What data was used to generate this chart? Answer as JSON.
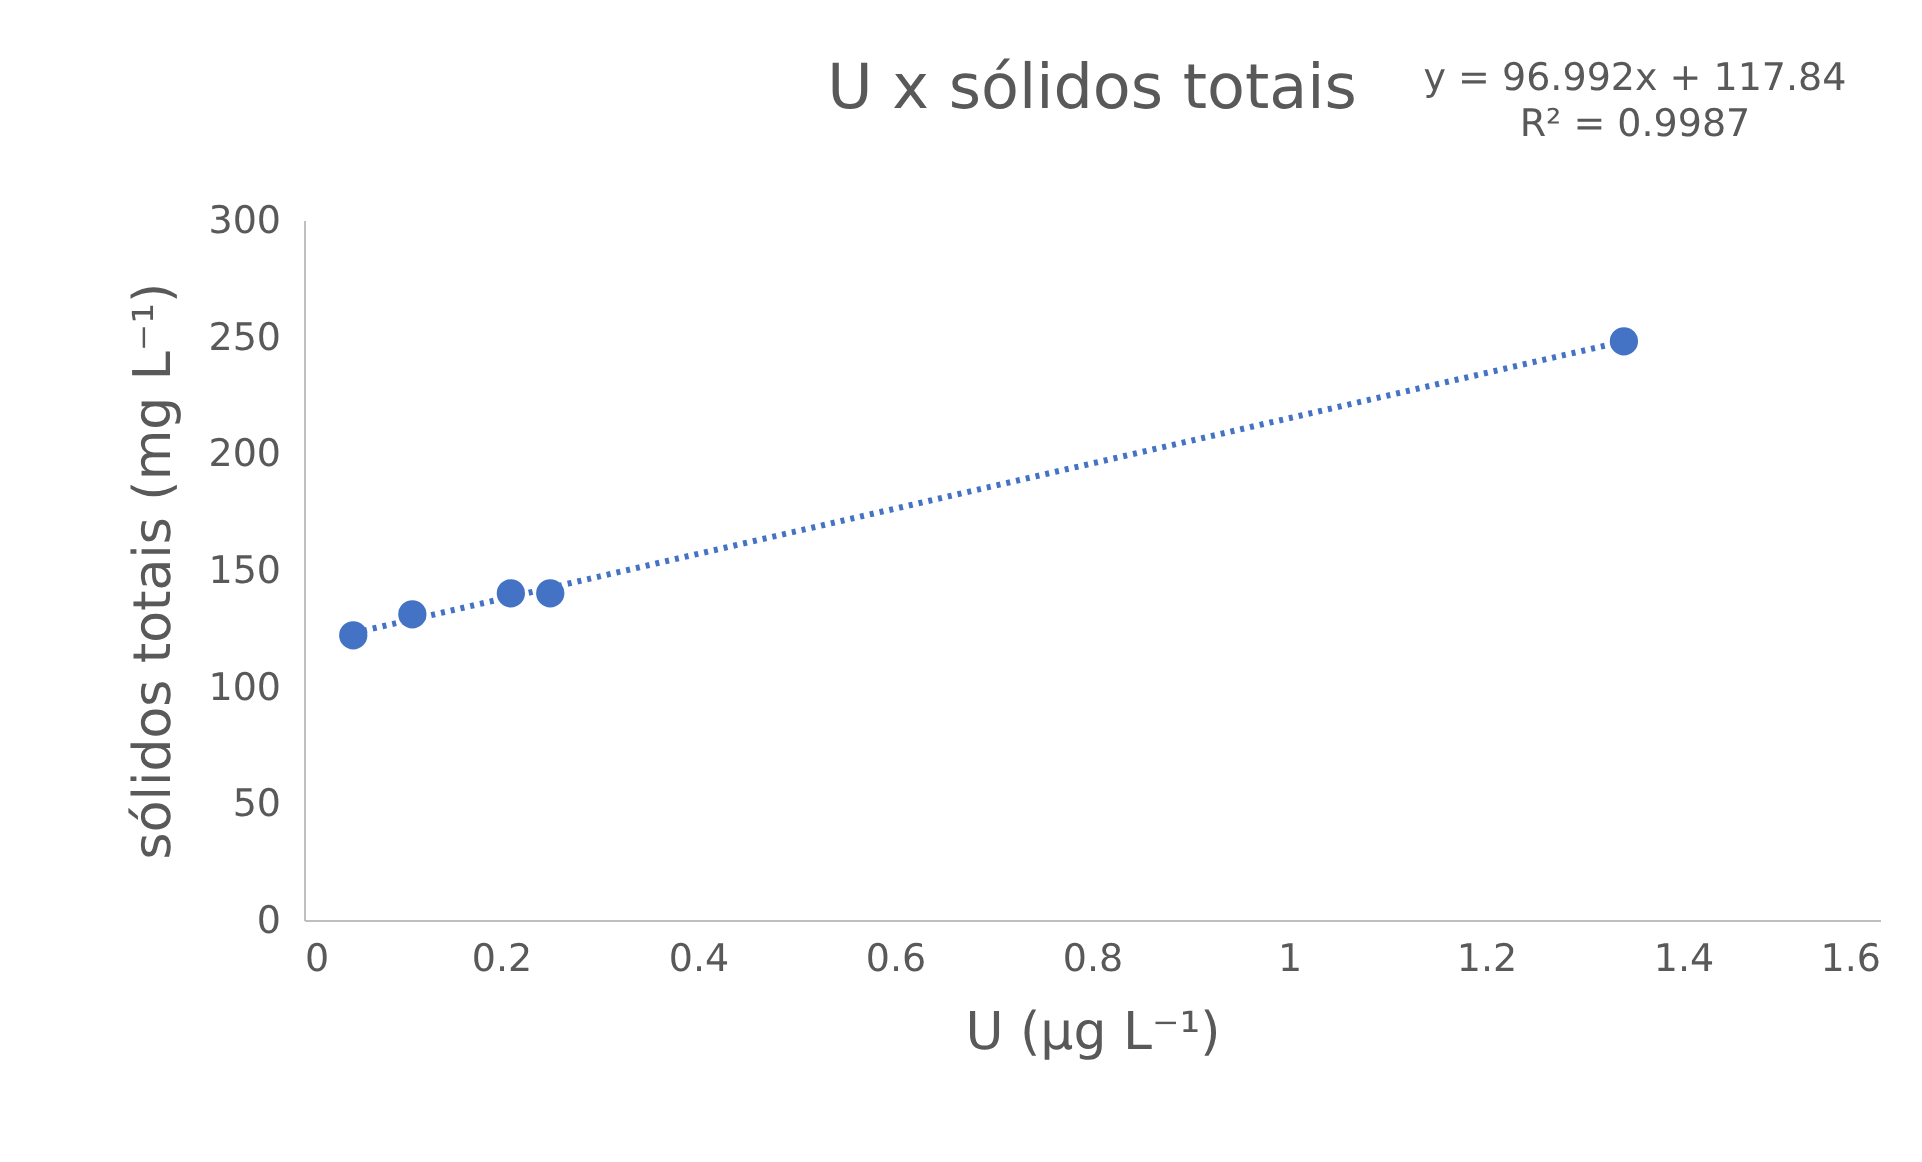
{
  "chart_data": {
    "type": "scatter",
    "title": "U x sólidos totais",
    "xlabel": "U (µg L⁻¹)",
    "ylabel": "sólidos totais (mg L⁻¹)",
    "annotations": [
      "y = 96.992x + 117.84",
      "R² = 0.9987"
    ],
    "series": [
      {
        "color": "#4472c4",
        "marker": "circle",
        "x": [
          0.05,
          0.11,
          0.21,
          0.25,
          1.34
        ],
        "values": [
          122,
          131,
          140,
          140,
          248
        ]
      },
      {
        "type": "line",
        "color": "#4472c4",
        "x": [
          0.05,
          1.34
        ],
        "values": [
          123,
          248
        ],
        "line_style": "dotted",
        "marker": "none"
      }
    ],
    "xlim": [
      0,
      1.6
    ],
    "xticks": [
      0,
      0.2,
      0.4,
      0.6,
      0.8,
      1,
      1.2,
      1.4,
      1.6
    ],
    "ylim": [
      0,
      300
    ],
    "yticks": [
      0,
      50,
      100,
      150,
      200,
      250,
      300
    ],
    "grid": false
  }
}
